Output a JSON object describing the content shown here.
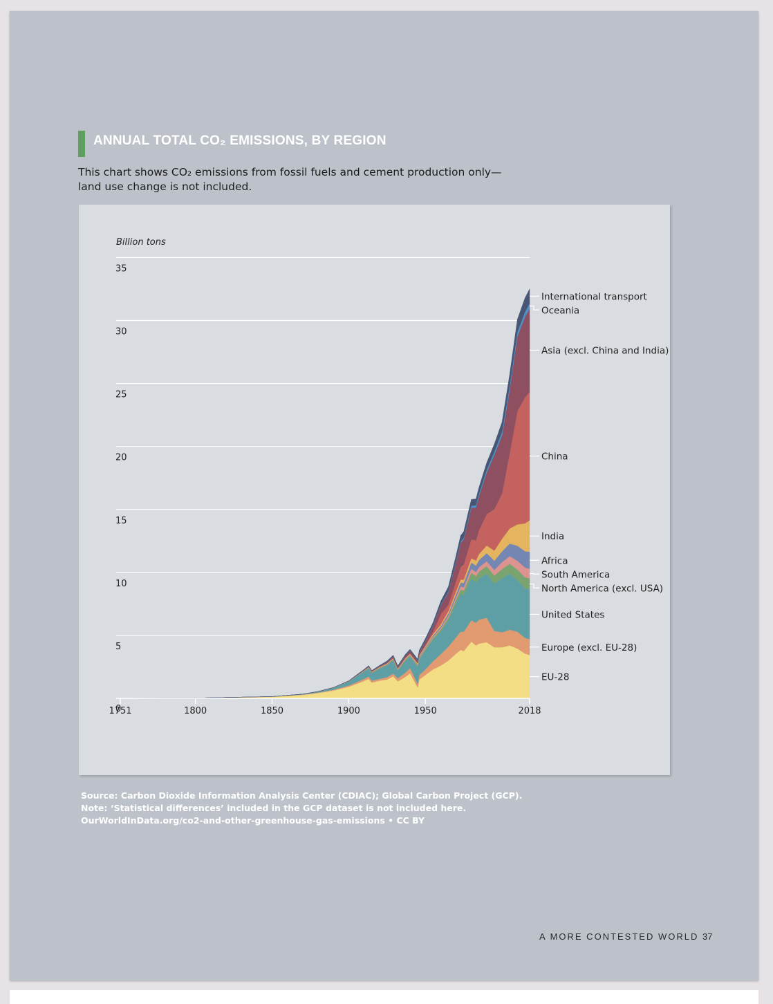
{
  "title": "ANNUAL TOTAL CO₂ EMISSIONS, BY REGION",
  "subtitle_lines": [
    "This chart shows CO₂ emissions from fossil fuels and cement production only—",
    "land use change is not included."
  ],
  "colors": {
    "title_bar": "#5fa060",
    "page_background": "#bdc2ca",
    "chart_background": "#d9dce1"
  },
  "chart_data": {
    "type": "area",
    "stacked": true,
    "ylabel": "Billion tons",
    "ylim": [
      0,
      37
    ],
    "yticks": [
      0,
      5,
      10,
      15,
      20,
      25,
      30,
      35
    ],
    "xlim": [
      1751,
      2018
    ],
    "xticks": [
      "1751",
      "1800",
      "1850",
      "1900",
      "1950",
      "2018"
    ],
    "grid": true,
    "legend": "right, direct labels",
    "x": [
      1751,
      1800,
      1850,
      1870,
      1880,
      1890,
      1900,
      1905,
      1910,
      1913,
      1915,
      1920,
      1925,
      1929,
      1932,
      1937,
      1940,
      1945,
      1946,
      1950,
      1955,
      1960,
      1965,
      1970,
      1973,
      1975,
      1980,
      1983,
      1985,
      1990,
      1995,
      2000,
      2005,
      2010,
      2015,
      2018
    ],
    "series": [
      {
        "name": "EU-28",
        "color": "#f3de85",
        "values": [
          0.01,
          0.03,
          0.12,
          0.28,
          0.42,
          0.62,
          0.92,
          1.15,
          1.38,
          1.55,
          1.25,
          1.4,
          1.5,
          1.75,
          1.35,
          1.7,
          2.0,
          0.85,
          1.5,
          1.85,
          2.3,
          2.6,
          3.0,
          3.55,
          3.85,
          3.75,
          4.5,
          4.2,
          4.35,
          4.45,
          4.05,
          4.05,
          4.2,
          3.95,
          3.55,
          3.45
        ]
      },
      {
        "name": "Europe (excl. EU-28)",
        "color": "#e29a70",
        "values": [
          0.0,
          0.0,
          0.01,
          0.02,
          0.04,
          0.06,
          0.1,
          0.13,
          0.17,
          0.19,
          0.15,
          0.15,
          0.18,
          0.22,
          0.25,
          0.35,
          0.4,
          0.3,
          0.35,
          0.45,
          0.65,
          0.9,
          1.1,
          1.3,
          1.45,
          1.55,
          1.7,
          1.8,
          1.9,
          1.95,
          1.3,
          1.2,
          1.25,
          1.35,
          1.25,
          1.25
        ]
      },
      {
        "name": "United States",
        "color": "#5e9fa6",
        "values": [
          0.0,
          0.0,
          0.01,
          0.04,
          0.08,
          0.16,
          0.3,
          0.48,
          0.58,
          0.64,
          0.6,
          0.8,
          0.95,
          1.05,
          0.6,
          0.95,
          0.9,
          1.35,
          1.25,
          1.5,
          1.7,
          1.8,
          2.1,
          2.7,
          3.0,
          2.9,
          3.3,
          3.2,
          3.3,
          3.5,
          3.75,
          4.3,
          4.45,
          4.1,
          3.95,
          3.95
        ]
      },
      {
        "name": "North America (excl. USA)",
        "color": "#7aa46f",
        "values": [
          0.0,
          0.0,
          0.0,
          0.0,
          0.0,
          0.01,
          0.02,
          0.02,
          0.03,
          0.04,
          0.04,
          0.05,
          0.05,
          0.06,
          0.05,
          0.06,
          0.07,
          0.08,
          0.09,
          0.1,
          0.13,
          0.16,
          0.2,
          0.28,
          0.33,
          0.36,
          0.47,
          0.5,
          0.52,
          0.6,
          0.65,
          0.72,
          0.79,
          0.82,
          0.86,
          0.88
        ]
      },
      {
        "name": "South America",
        "color": "#dd938f",
        "values": [
          0.0,
          0.0,
          0.0,
          0.0,
          0.0,
          0.0,
          0.0,
          0.0,
          0.01,
          0.01,
          0.01,
          0.01,
          0.02,
          0.02,
          0.02,
          0.03,
          0.03,
          0.04,
          0.05,
          0.07,
          0.1,
          0.13,
          0.16,
          0.21,
          0.25,
          0.27,
          0.33,
          0.32,
          0.34,
          0.38,
          0.45,
          0.55,
          0.6,
          0.7,
          0.78,
          0.76
        ]
      },
      {
        "name": "Africa",
        "color": "#7486b2",
        "values": [
          0.0,
          0.0,
          0.0,
          0.0,
          0.0,
          0.0,
          0.0,
          0.0,
          0.01,
          0.01,
          0.01,
          0.02,
          0.03,
          0.03,
          0.03,
          0.04,
          0.05,
          0.06,
          0.07,
          0.08,
          0.1,
          0.13,
          0.18,
          0.25,
          0.3,
          0.33,
          0.48,
          0.52,
          0.57,
          0.65,
          0.73,
          0.85,
          1.0,
          1.2,
          1.3,
          1.35
        ]
      },
      {
        "name": "India",
        "color": "#e4b45f",
        "values": [
          0.0,
          0.0,
          0.0,
          0.0,
          0.01,
          0.01,
          0.02,
          0.02,
          0.03,
          0.04,
          0.04,
          0.05,
          0.05,
          0.06,
          0.06,
          0.07,
          0.08,
          0.09,
          0.09,
          0.1,
          0.12,
          0.15,
          0.2,
          0.22,
          0.25,
          0.27,
          0.35,
          0.4,
          0.48,
          0.6,
          0.8,
          1.0,
          1.2,
          1.7,
          2.2,
          2.5
        ]
      },
      {
        "name": "China",
        "color": "#c3625e",
        "values": [
          0.0,
          0.0,
          0.0,
          0.0,
          0.0,
          0.0,
          0.0,
          0.0,
          0.01,
          0.02,
          0.02,
          0.02,
          0.02,
          0.03,
          0.03,
          0.04,
          0.05,
          0.04,
          0.05,
          0.08,
          0.2,
          0.8,
          0.5,
          0.8,
          1.0,
          1.2,
          1.5,
          1.6,
          1.9,
          2.5,
          3.3,
          3.6,
          6.0,
          9.0,
          10.0,
          10.2
        ]
      },
      {
        "name": "Asia (excl. China and India)",
        "color": "#8e4f60",
        "values": [
          0.0,
          0.0,
          0.0,
          0.0,
          0.0,
          0.0,
          0.01,
          0.02,
          0.03,
          0.04,
          0.04,
          0.05,
          0.08,
          0.1,
          0.1,
          0.15,
          0.2,
          0.15,
          0.2,
          0.3,
          0.45,
          0.7,
          1.0,
          1.5,
          1.9,
          2.0,
          2.5,
          2.6,
          2.7,
          3.3,
          4.3,
          4.6,
          5.0,
          5.9,
          6.4,
          6.6
        ]
      },
      {
        "name": "Oceania",
        "color": "#4e8fc4",
        "values": [
          0.0,
          0.0,
          0.0,
          0.0,
          0.0,
          0.0,
          0.01,
          0.01,
          0.01,
          0.01,
          0.01,
          0.01,
          0.02,
          0.02,
          0.02,
          0.02,
          0.02,
          0.03,
          0.03,
          0.04,
          0.05,
          0.06,
          0.08,
          0.1,
          0.12,
          0.13,
          0.17,
          0.19,
          0.2,
          0.23,
          0.27,
          0.31,
          0.35,
          0.37,
          0.4,
          0.42
        ]
      },
      {
        "name": "International transport",
        "color": "#465674",
        "values": [
          0.0,
          0.0,
          0.0,
          0.0,
          0.0,
          0.01,
          0.02,
          0.03,
          0.04,
          0.05,
          0.04,
          0.05,
          0.07,
          0.09,
          0.08,
          0.1,
          0.1,
          0.12,
          0.14,
          0.18,
          0.22,
          0.27,
          0.35,
          0.43,
          0.48,
          0.48,
          0.5,
          0.5,
          0.5,
          0.55,
          0.6,
          0.75,
          0.9,
          1.0,
          1.1,
          1.15
        ]
      }
    ]
  },
  "source_lines": [
    "Source: Carbon Dioxide Information Analysis Center (CDIAC); Global Carbon Project (GCP).",
    "Note: ‘Statistical differences’ included in the GCP dataset is not included here.",
    "OurWorldInData.org/co2-and-other-greenhouse-gas-emissions • CC BY"
  ],
  "footer": {
    "title": "A MORE CONTESTED WORLD",
    "page_number": "37"
  }
}
